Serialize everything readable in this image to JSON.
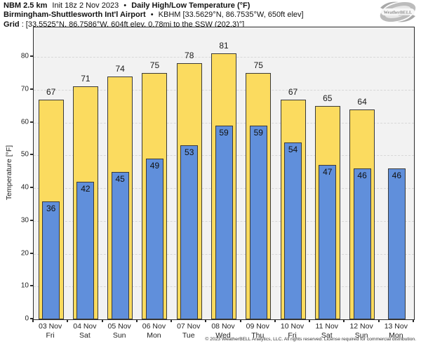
{
  "header": {
    "line1": {
      "model": "NBM 2.5 km",
      "init": "Init 18z 2 Nov 2023",
      "sep": "•",
      "title": "Daily High/Low Temperature (°F)"
    },
    "line2": {
      "station": "Birmingham-Shuttlesworth Int'l Airport",
      "sep": "•",
      "info": "KBHM [33.5629°N, 86.7535°W, 650ft elev]"
    },
    "line3": {
      "label": "Grid",
      "info": ": [33.5525°N, 86.7586°W, 604ft elev, 0.78mi to the SSW (202.3)°]"
    }
  },
  "logo": {
    "text": "WeatherBELL"
  },
  "chart_data": {
    "type": "bar",
    "title": "Daily High/Low Temperature (°F)",
    "xlabel": "",
    "ylabel": "Temperature [°F]",
    "ylim": [
      0,
      89
    ],
    "yticks": [
      0,
      10,
      20,
      30,
      40,
      50,
      60,
      70,
      80
    ],
    "grid": true,
    "legend_position": "none",
    "categories": [
      {
        "date": "03 Nov",
        "day": "Fri"
      },
      {
        "date": "04 Nov",
        "day": "Sat"
      },
      {
        "date": "05 Nov",
        "day": "Sun"
      },
      {
        "date": "06 Nov",
        "day": "Mon"
      },
      {
        "date": "07 Nov",
        "day": "Tue"
      },
      {
        "date": "08 Nov",
        "day": "Wed"
      },
      {
        "date": "09 Nov",
        "day": "Thu"
      },
      {
        "date": "10 Nov",
        "day": "Fri"
      },
      {
        "date": "11 Nov",
        "day": "Sat"
      },
      {
        "date": "12 Nov",
        "day": "Sun"
      },
      {
        "date": "13 Nov",
        "day": "Mon"
      }
    ],
    "series": [
      {
        "name": "Daily High",
        "color": "#fbdb5f",
        "values": [
          67,
          71,
          74,
          75,
          78,
          81,
          75,
          67,
          65,
          64,
          null
        ]
      },
      {
        "name": "Daily Low",
        "color": "#608fdb",
        "values": [
          36,
          42,
          45,
          49,
          53,
          59,
          59,
          54,
          47,
          46,
          46
        ]
      }
    ],
    "colors": {
      "plot_background": "#f2f2f2",
      "gridline": "#d8d8d8",
      "bar_border": "#3a3a3a",
      "axis": "#2b2b2b"
    }
  },
  "footer": {
    "copyright": "© 2023 WeatherBELL Analytics, LLC. All rights reserved. License required for commercial distribution."
  }
}
